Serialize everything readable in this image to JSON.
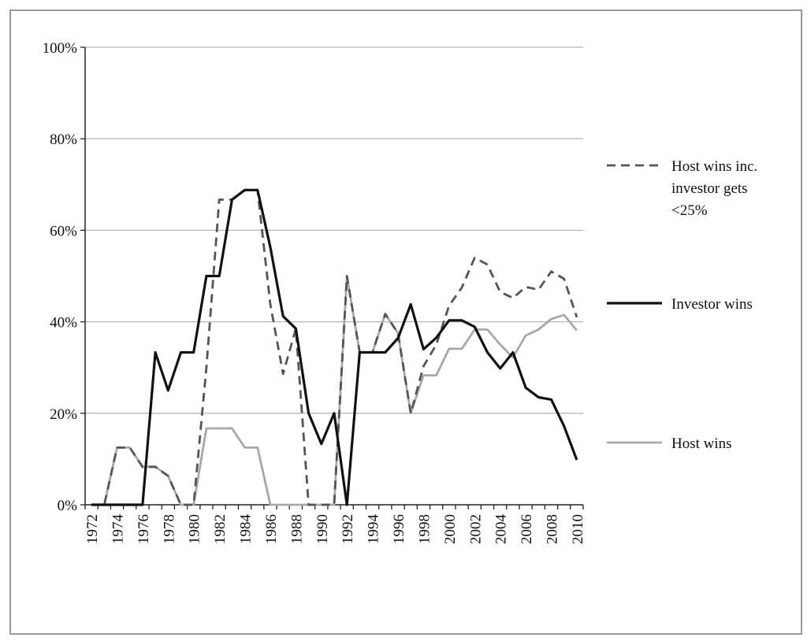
{
  "chart_data": {
    "type": "line",
    "title": "",
    "xlabel": "",
    "ylabel": "",
    "ylim": [
      0,
      100
    ],
    "y_ticks": [
      "0%",
      "20%",
      "40%",
      "60%",
      "80%",
      "100%"
    ],
    "y_tick_values": [
      0,
      20,
      40,
      60,
      80,
      100
    ],
    "x_tick_labels": [
      "1972",
      "1974",
      "1976",
      "1978",
      "1980",
      "1982",
      "1984",
      "1986",
      "1988",
      "1990",
      "1992",
      "1994",
      "1996",
      "1998",
      "2000",
      "2002",
      "2004",
      "2006",
      "2008",
      "2010"
    ],
    "grid": true,
    "legend_position": "right",
    "x": [
      1972,
      1973,
      1974,
      1975,
      1976,
      1977,
      1978,
      1979,
      1980,
      1981,
      1982,
      1983,
      1984,
      1985,
      1986,
      1987,
      1988,
      1989,
      1990,
      1991,
      1992,
      1993,
      1994,
      1995,
      1996,
      1997,
      1998,
      1999,
      2000,
      2001,
      2002,
      2003,
      2004,
      2005,
      2006,
      2007,
      2008,
      2009,
      2010
    ],
    "series": [
      {
        "name": "Host wins inc. investor gets <25%",
        "legend_lines": [
          "Host wins inc.",
          "investor gets",
          "<25%"
        ],
        "style": "dashed",
        "color": "#555555",
        "values": [
          0,
          0,
          12.5,
          12.5,
          8.3,
          8.3,
          6.3,
          0,
          0,
          30,
          66.7,
          66.7,
          68.8,
          68.8,
          43.8,
          28.6,
          38.5,
          0,
          0,
          0,
          50,
          33.3,
          33.3,
          41.7,
          37.5,
          20,
          30.3,
          35,
          43.5,
          47.5,
          54,
          52.5,
          46.5,
          45.2,
          47.6,
          47,
          51,
          49.4,
          41
        ]
      },
      {
        "name": "Investor wins",
        "legend_lines": [
          "Investor wins"
        ],
        "style": "solid",
        "color": "#111111",
        "values": [
          0,
          0,
          0,
          0,
          0,
          33.3,
          25,
          33.3,
          33.3,
          50,
          50,
          66.7,
          68.8,
          68.8,
          56.3,
          41.2,
          38.5,
          20,
          13.3,
          20,
          0,
          33.3,
          33.3,
          33.3,
          36.4,
          43.8,
          34,
          36.5,
          40.3,
          40.3,
          38.9,
          33.3,
          29.8,
          33.3,
          25.6,
          23.5,
          23,
          17.2,
          9.8
        ]
      },
      {
        "name": "Host wins",
        "legend_lines": [
          "Host wins"
        ],
        "style": "solid",
        "color": "#a8a8a8",
        "values": [
          0,
          0,
          12.5,
          12.5,
          8.3,
          8.3,
          6.3,
          0,
          0,
          16.7,
          16.7,
          16.7,
          12.5,
          12.5,
          0,
          0,
          0,
          0,
          0,
          0,
          50,
          33.3,
          33.3,
          41.7,
          37.5,
          20,
          28.3,
          28.3,
          34.1,
          34.1,
          38.3,
          38.3,
          35,
          32.2,
          37,
          38.3,
          40.6,
          41.5,
          38.1
        ]
      }
    ]
  }
}
